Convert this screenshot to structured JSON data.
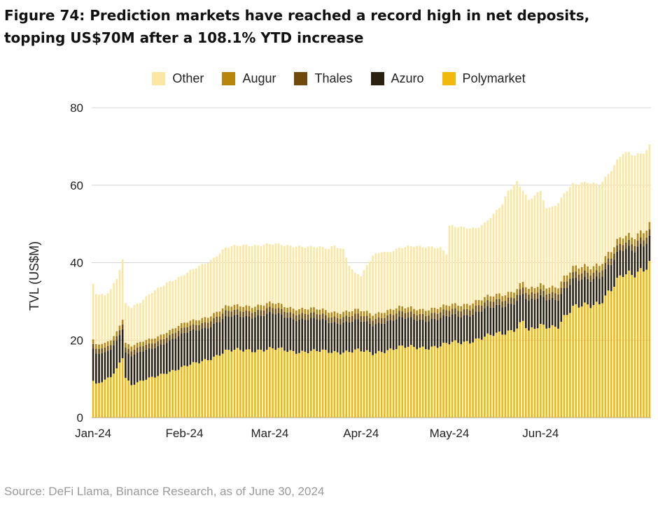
{
  "chart_data": {
    "type": "bar",
    "stacked": true,
    "title": "Figure 74: Prediction markets have reached a record high in net deposits, topping US$70M after a 108.1% YTD increase",
    "xlabel": "",
    "ylabel": "TVL (US$M)",
    "ylim": [
      0,
      80
    ],
    "yticks": [
      0,
      20,
      40,
      60,
      80
    ],
    "legend_position": "top",
    "grid": true,
    "x_tick_labels": [
      {
        "label": "Jan-24",
        "index": 0
      },
      {
        "label": "Feb-24",
        "index": 31
      },
      {
        "label": "Mar-24",
        "index": 60
      },
      {
        "label": "Apr-24",
        "index": 91
      },
      {
        "label": "May-24",
        "index": 121
      },
      {
        "label": "Jun-24",
        "index": 152
      }
    ],
    "categories_note": "Daily observations, Jan 1 2024 to Jun 30 2024",
    "series": [
      {
        "name": "Polymarket",
        "color": "#F0B90B",
        "anchors": [
          [
            0,
            9.5
          ],
          [
            1,
            8.5
          ],
          [
            4,
            9.5
          ],
          [
            6,
            10.5
          ],
          [
            8,
            12.5
          ],
          [
            10,
            16
          ],
          [
            11,
            10.5
          ],
          [
            13,
            8.5
          ],
          [
            17,
            9.5
          ],
          [
            21,
            10.5
          ],
          [
            25,
            11.8
          ],
          [
            30,
            12.8
          ],
          [
            35,
            14
          ],
          [
            40,
            15.5
          ],
          [
            45,
            17
          ],
          [
            52,
            17.5
          ],
          [
            57,
            17.5
          ],
          [
            62,
            17.6
          ],
          [
            68,
            17.2
          ],
          [
            75,
            17
          ],
          [
            82,
            17
          ],
          [
            90,
            17.2
          ],
          [
            95,
            16.5
          ],
          [
            98,
            17.3
          ],
          [
            104,
            18
          ],
          [
            112,
            18.2
          ],
          [
            118,
            18.4
          ],
          [
            122,
            19.2
          ],
          [
            126,
            19.6
          ],
          [
            130,
            20.2
          ],
          [
            135,
            21
          ],
          [
            140,
            22
          ],
          [
            144,
            23.5
          ],
          [
            146,
            25
          ],
          [
            148,
            22
          ],
          [
            152,
            23.5
          ],
          [
            156,
            23.7
          ],
          [
            158,
            24
          ],
          [
            160,
            26
          ],
          [
            163,
            28
          ],
          [
            168,
            29
          ],
          [
            172,
            30
          ],
          [
            176,
            33
          ],
          [
            180,
            36.5
          ],
          [
            183,
            37
          ],
          [
            186,
            38.5
          ],
          [
            189,
            40
          ]
        ]
      },
      {
        "name": "Azuro",
        "color": "#2B2111",
        "anchors": [
          [
            0,
            8
          ],
          [
            4,
            7
          ],
          [
            10,
            7.5
          ],
          [
            11,
            6.5
          ],
          [
            13,
            7.5
          ],
          [
            20,
            7.5
          ],
          [
            30,
            8.5
          ],
          [
            40,
            8.5
          ],
          [
            50,
            8.8
          ],
          [
            60,
            9
          ],
          [
            70,
            8.5
          ],
          [
            80,
            7.8
          ],
          [
            90,
            7.6
          ],
          [
            100,
            7.5
          ],
          [
            110,
            7.3
          ],
          [
            120,
            7
          ],
          [
            130,
            7
          ],
          [
            140,
            7.2
          ],
          [
            144,
            7
          ],
          [
            146,
            7
          ],
          [
            148,
            7.5
          ],
          [
            152,
            7.5
          ],
          [
            160,
            7
          ],
          [
            170,
            6.8
          ],
          [
            180,
            6.6
          ],
          [
            189,
            6.5
          ]
        ]
      },
      {
        "name": "Thales",
        "color": "#6F4A0C",
        "anchors": [
          [
            0,
            1.2
          ],
          [
            40,
            1.4
          ],
          [
            80,
            1.4
          ],
          [
            120,
            1.5
          ],
          [
            160,
            1.6
          ],
          [
            189,
            1.6
          ]
        ]
      },
      {
        "name": "Augur",
        "color": "#B8860B",
        "anchors": [
          [
            0,
            1.2
          ],
          [
            40,
            1.3
          ],
          [
            80,
            1.3
          ],
          [
            120,
            1.3
          ],
          [
            150,
            1.5
          ],
          [
            189,
            1.8
          ]
        ]
      },
      {
        "name": "Other",
        "color": "#FBE7A1",
        "anchors": [
          [
            0,
            14.5
          ],
          [
            1,
            13.5
          ],
          [
            4,
            12.5
          ],
          [
            8,
            13.5
          ],
          [
            10,
            15
          ],
          [
            11,
            10
          ],
          [
            13,
            10
          ],
          [
            16,
            10.5
          ],
          [
            20,
            12
          ],
          [
            25,
            12.5
          ],
          [
            30,
            12.5
          ],
          [
            35,
            13.5
          ],
          [
            40,
            14
          ],
          [
            45,
            15.5
          ],
          [
            50,
            15.5
          ],
          [
            55,
            15.5
          ],
          [
            60,
            15.5
          ],
          [
            65,
            15.5
          ],
          [
            70,
            16
          ],
          [
            75,
            16.2
          ],
          [
            80,
            16
          ],
          [
            82,
            17
          ],
          [
            85,
            16
          ],
          [
            87,
            12
          ],
          [
            89,
            9.5
          ],
          [
            91,
            9
          ],
          [
            93,
            12
          ],
          [
            95,
            15
          ],
          [
            98,
            15.5
          ],
          [
            100,
            15
          ],
          [
            104,
            15.5
          ],
          [
            110,
            16
          ],
          [
            115,
            16
          ],
          [
            118,
            15.5
          ],
          [
            120,
            13.5
          ],
          [
            121,
            20.5
          ],
          [
            123,
            20
          ],
          [
            127,
            19.5
          ],
          [
            130,
            19
          ],
          [
            133,
            19.5
          ],
          [
            136,
            21
          ],
          [
            139,
            23
          ],
          [
            141,
            26
          ],
          [
            143,
            27
          ],
          [
            144,
            27.5
          ],
          [
            146,
            24
          ],
          [
            148,
            23.5
          ],
          [
            150,
            24
          ],
          [
            152,
            24
          ],
          [
            154,
            20
          ],
          [
            155,
            20
          ],
          [
            157,
            21
          ],
          [
            160,
            22
          ],
          [
            163,
            22
          ],
          [
            165,
            21.5
          ],
          [
            168,
            21.5
          ],
          [
            172,
            20.5
          ],
          [
            176,
            21
          ],
          [
            180,
            21.5
          ],
          [
            183,
            21
          ],
          [
            186,
            20
          ],
          [
            189,
            20.5
          ]
        ]
      }
    ],
    "num_points": 190
  },
  "source": "Source: DeFi Llama, Binance Research, as of June 30, 2024"
}
